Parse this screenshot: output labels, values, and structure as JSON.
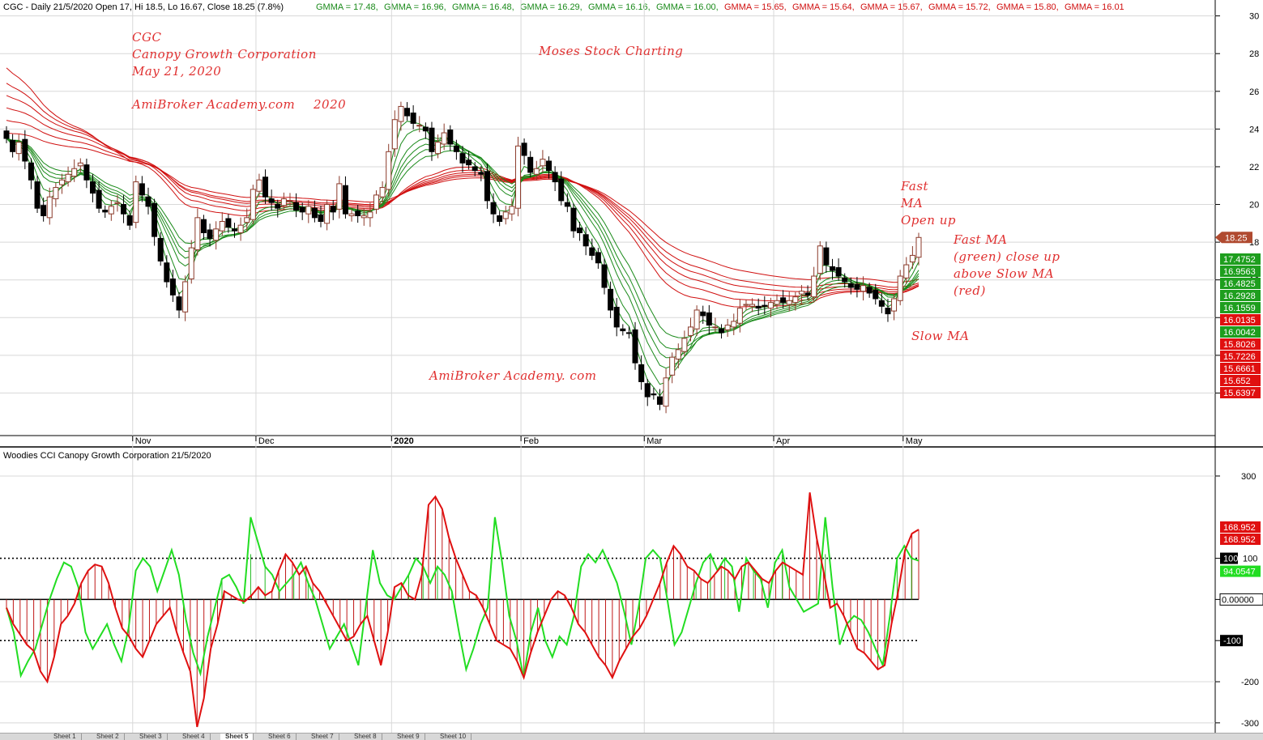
{
  "header": {
    "title": "CGC - Daily 21/5/2020 Open 17, Hi 18.5, Lo 16.67, Close 18.25 (7.8%)",
    "gmma_fast": [
      "GMMA = 17.48,",
      "GMMA = 16.96,",
      "GMMA = 16.48,",
      "GMMA = 16.29,",
      "GMMA = 16.16,",
      "GMMA = 16.00,"
    ],
    "gmma_slow": [
      "GMMA = 15.65,",
      "GMMA = 15.64,",
      "GMMA = 15.67,",
      "GMMA = 15.72,",
      "GMMA = 15.80,",
      "GMMA = 16.01"
    ]
  },
  "annotations": {
    "ticker": "CGC",
    "company": "Canopy Growth Corporation",
    "date": "May 21, 2020",
    "site": "AmiBroker Academy.com",
    "year": "2020",
    "brand": "Moses Stock Charting",
    "fast_ma_1": "Fast",
    "fast_ma_2": "MA",
    "fast_ma_3": "Open up",
    "green_1": "Fast MA",
    "green_2": "(green) close up",
    "green_3": "above Slow MA",
    "green_4": "(red)",
    "slow_ma": "Slow MA",
    "watermark": "AmiBroker Academy. com"
  },
  "cci_panel": {
    "title": "Woodies CCI  Canopy Growth Corporation 21/5/2020"
  },
  "colors": {
    "fast": "#1a8a1a",
    "slow": "#d01010",
    "cci_green": "#22dd22",
    "cci_red": "#e01010",
    "note": "#e03030"
  },
  "chart_data": [
    {
      "type": "candlestick",
      "title": "CGC - Daily 21/5/2020",
      "ylim": [
        8,
        30.5
      ],
      "y_ticks": [
        10,
        12,
        14,
        16,
        18,
        20,
        22,
        24,
        26,
        28,
        30
      ],
      "x_labels": [
        "Nov",
        "Dec",
        "2020",
        "Feb",
        "Mar",
        "Apr",
        "May"
      ],
      "ohlc_close": [
        23.5,
        22.8,
        23.3,
        22.3,
        21.3,
        19.8,
        19.4,
        20.4,
        20.9,
        21.3,
        21.6,
        21.9,
        22.2,
        21.3,
        20.6,
        19.8,
        19.6,
        19.9,
        20.1,
        19.5,
        18.9,
        21.2,
        20.5,
        19.9,
        18.3,
        17.0,
        15.9,
        15.2,
        14.4,
        15.9,
        17.7,
        19.3,
        18.5,
        18.2,
        18.7,
        19.1,
        18.8,
        18.6,
        18.9,
        19.3,
        20.8,
        21.3,
        20.4,
        20.1,
        19.8,
        20.3,
        20.2,
        19.7,
        19.6,
        19.9,
        19.3,
        19.1,
        20.0,
        19.6,
        21.1,
        19.5,
        19.5,
        19.4,
        19.4,
        19.6,
        20.5,
        20.9,
        22.8,
        24.5,
        25.2,
        24.7,
        24.3,
        24.2,
        23.9,
        22.8,
        23.3,
        23.8,
        23.2,
        22.8,
        22.2,
        22.1,
        21.8,
        21.6,
        20.2,
        19.5,
        19.1,
        19.6,
        19.9,
        23.1,
        22.6,
        21.7,
        21.9,
        22.4,
        21.8,
        21.2,
        20.2,
        19.9,
        18.6,
        18.5,
        17.8,
        17.3,
        16.9,
        15.6,
        14.4,
        13.5,
        13.3,
        13.2,
        11.6,
        10.6,
        9.8,
        9.9,
        9.4,
        10.8,
        11.9,
        12.3,
        12.9,
        13.5,
        14.4,
        14.1,
        13.6,
        13.5,
        13.2,
        13.6,
        13.8,
        14.5,
        14.7,
        14.7,
        14.5,
        14.6,
        14.8,
        14.9,
        14.8,
        14.9,
        15.1,
        15.4,
        15.2,
        16.2,
        17.8,
        16.8,
        16.5,
        16.2,
        15.9,
        15.6,
        15.5,
        15.7,
        15.3,
        15.0,
        14.6,
        14.2,
        15.0,
        16.2,
        16.8,
        17.3,
        18.25
      ],
      "gmma_fast_last": [
        17.4752,
        16.9563,
        16.4825,
        16.2928,
        16.1559,
        16.0042
      ],
      "gmma_slow_last": [
        16.0135,
        15.8026,
        15.7226,
        15.6661,
        15.652,
        15.6397
      ],
      "last_close": 18.25
    },
    {
      "type": "line",
      "title": "Woodies CCI  Canopy Growth Corporation 21/5/2020",
      "ylim": [
        -320,
        355
      ],
      "y_ticks": [
        -300,
        -200,
        -100,
        0,
        100,
        300
      ],
      "levels": [
        -100,
        0,
        100
      ],
      "series": [
        {
          "values": [
            -20,
            -60,
            -85,
            -110,
            -125,
            -175,
            -200,
            -140,
            -60,
            -40,
            -10,
            40,
            70,
            85,
            80,
            40,
            -20,
            -70,
            -90,
            -120,
            -140,
            -100,
            -60,
            -40,
            -20,
            -80,
            -130,
            -175,
            -310,
            -240,
            -120,
            -60,
            20,
            10,
            0,
            -5,
            10,
            30,
            10,
            20,
            70,
            110,
            90,
            60,
            80,
            40,
            20,
            -10,
            -40,
            -70,
            -100,
            -90,
            -60,
            -40,
            -100,
            -160,
            -80,
            30,
            40,
            10,
            0,
            60,
            230,
            250,
            220,
            150,
            100,
            60,
            20,
            10,
            -20,
            -60,
            -100,
            -110,
            -120,
            -150,
            -190,
            -130,
            -80,
            -40,
            0,
            20,
            10,
            -20,
            -60,
            -80,
            -110,
            -140,
            -160,
            -190,
            -150,
            -120,
            -90,
            -70,
            -40,
            0,
            40,
            90,
            130,
            110,
            80,
            70,
            50,
            40,
            60,
            80,
            70,
            50,
            80,
            90,
            70,
            50,
            40,
            70,
            90,
            80,
            70,
            60,
            260,
            150,
            70,
            -20,
            -10,
            -40,
            -80,
            -120,
            -130,
            -150,
            -170,
            -160,
            -60,
            20,
            120,
            160,
            170
          ]
        },
        {
          "values": [
            -20,
            -80,
            -185,
            -150,
            -120,
            -60,
            0,
            50,
            90,
            80,
            30,
            -80,
            -120,
            -90,
            -60,
            -110,
            -150,
            -70,
            70,
            100,
            80,
            20,
            70,
            120,
            60,
            -50,
            -130,
            -180,
            -90,
            -20,
            50,
            60,
            30,
            -10,
            200,
            140,
            80,
            60,
            20,
            40,
            60,
            90,
            40,
            0,
            -60,
            -120,
            -90,
            -60,
            -110,
            -160,
            -20,
            120,
            40,
            10,
            0,
            30,
            60,
            100,
            80,
            40,
            80,
            60,
            20,
            -80,
            -170,
            -120,
            -60,
            -20,
            200,
            90,
            -40,
            -100,
            -190,
            -80,
            -20,
            -100,
            -140,
            -90,
            -110,
            -40,
            80,
            110,
            90,
            120,
            80,
            40,
            -30,
            -110,
            -20,
            100,
            120,
            100,
            0,
            -110,
            -80,
            -20,
            40,
            90,
            110,
            70,
            100,
            80,
            -30,
            100,
            70,
            50,
            -20,
            90,
            120,
            30,
            0,
            -30,
            -20,
            -10,
            200,
            30,
            -110,
            -60,
            -40,
            -50,
            -80,
            -120,
            -160,
            -40,
            100,
            130,
            100,
            94
          ]
        }
      ],
      "last_values": [
        168.952,
        94.0547
      ]
    }
  ],
  "price_axis_tags": {
    "last_close": "18.25",
    "fast": [
      "17.4752",
      "16.9563",
      "16.4825",
      "16.2928",
      "16.1559",
      "16.0042"
    ],
    "slow": [
      "16.0135",
      "15.8026",
      "15.7226",
      "15.6661",
      "15.652",
      "15.6397"
    ]
  },
  "cci_axis_tags": {
    "cci_red_1": "168.952",
    "cci_red_2": "168.952",
    "level_plus": "100",
    "green_value": "94.0547",
    "zero": "0.00000",
    "level_minus": "-100"
  },
  "sheet_tabs": [
    "Sheet 1",
    "Sheet 2",
    "Sheet 3",
    "Sheet 4",
    "Sheet 5",
    "Sheet 6",
    "Sheet 7",
    "Sheet 8",
    "Sheet 9",
    "Sheet 10"
  ]
}
